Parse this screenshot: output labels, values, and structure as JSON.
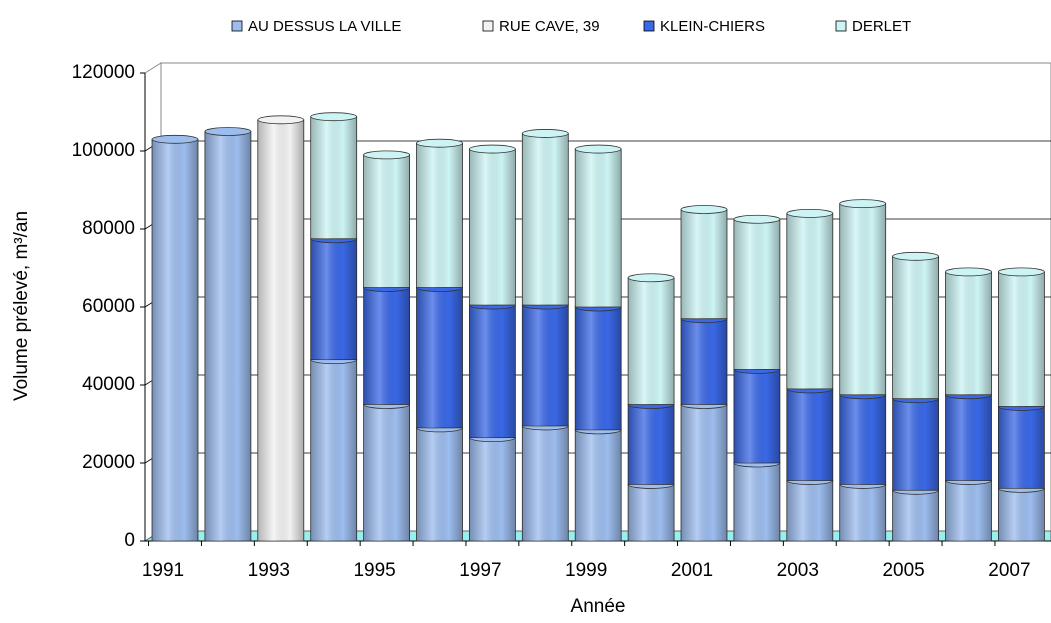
{
  "chart_data": {
    "type": "bar",
    "stacked": true,
    "x_label": "Année",
    "y_label": "Volume prélevé, m³/an",
    "categories": [
      "1991",
      null,
      "1993",
      null,
      "1995",
      null,
      "1997",
      null,
      "1999",
      null,
      "2001",
      null,
      "2003",
      null,
      "2005",
      null,
      "2007"
    ],
    "series": [
      {
        "name": "AU DESSUS LA VILLE",
        "color": "#9dbdee",
        "values": [
          103000,
          105000,
          null,
          46500,
          35000,
          29000,
          26500,
          29500,
          28500,
          14500,
          35000,
          20000,
          15500,
          14500,
          13000,
          15500,
          13500
        ]
      },
      {
        "name": "RUE CAVE, 39",
        "color": "#f2f2f2",
        "values": [
          null,
          null,
          108000,
          null,
          null,
          null,
          null,
          null,
          null,
          null,
          null,
          null,
          null,
          null,
          null,
          null,
          null
        ]
      },
      {
        "name": "KLEIN-CHIERS",
        "color": "#3a68e6",
        "values": [
          null,
          null,
          null,
          31000,
          30000,
          36000,
          34000,
          31000,
          31500,
          20500,
          22000,
          24000,
          23500,
          23000,
          23500,
          22000,
          21000
        ]
      },
      {
        "name": "DERLET",
        "color": "#cdf4f4",
        "values": [
          null,
          null,
          null,
          31300,
          34000,
          37000,
          40000,
          44000,
          40500,
          32500,
          28000,
          38500,
          45000,
          49000,
          36500,
          31500,
          34500
        ]
      }
    ],
    "ylim": [
      0,
      120000
    ],
    "yticks": [
      0,
      20000,
      40000,
      60000,
      80000,
      100000,
      120000
    ],
    "grid": true,
    "legend": "top"
  }
}
